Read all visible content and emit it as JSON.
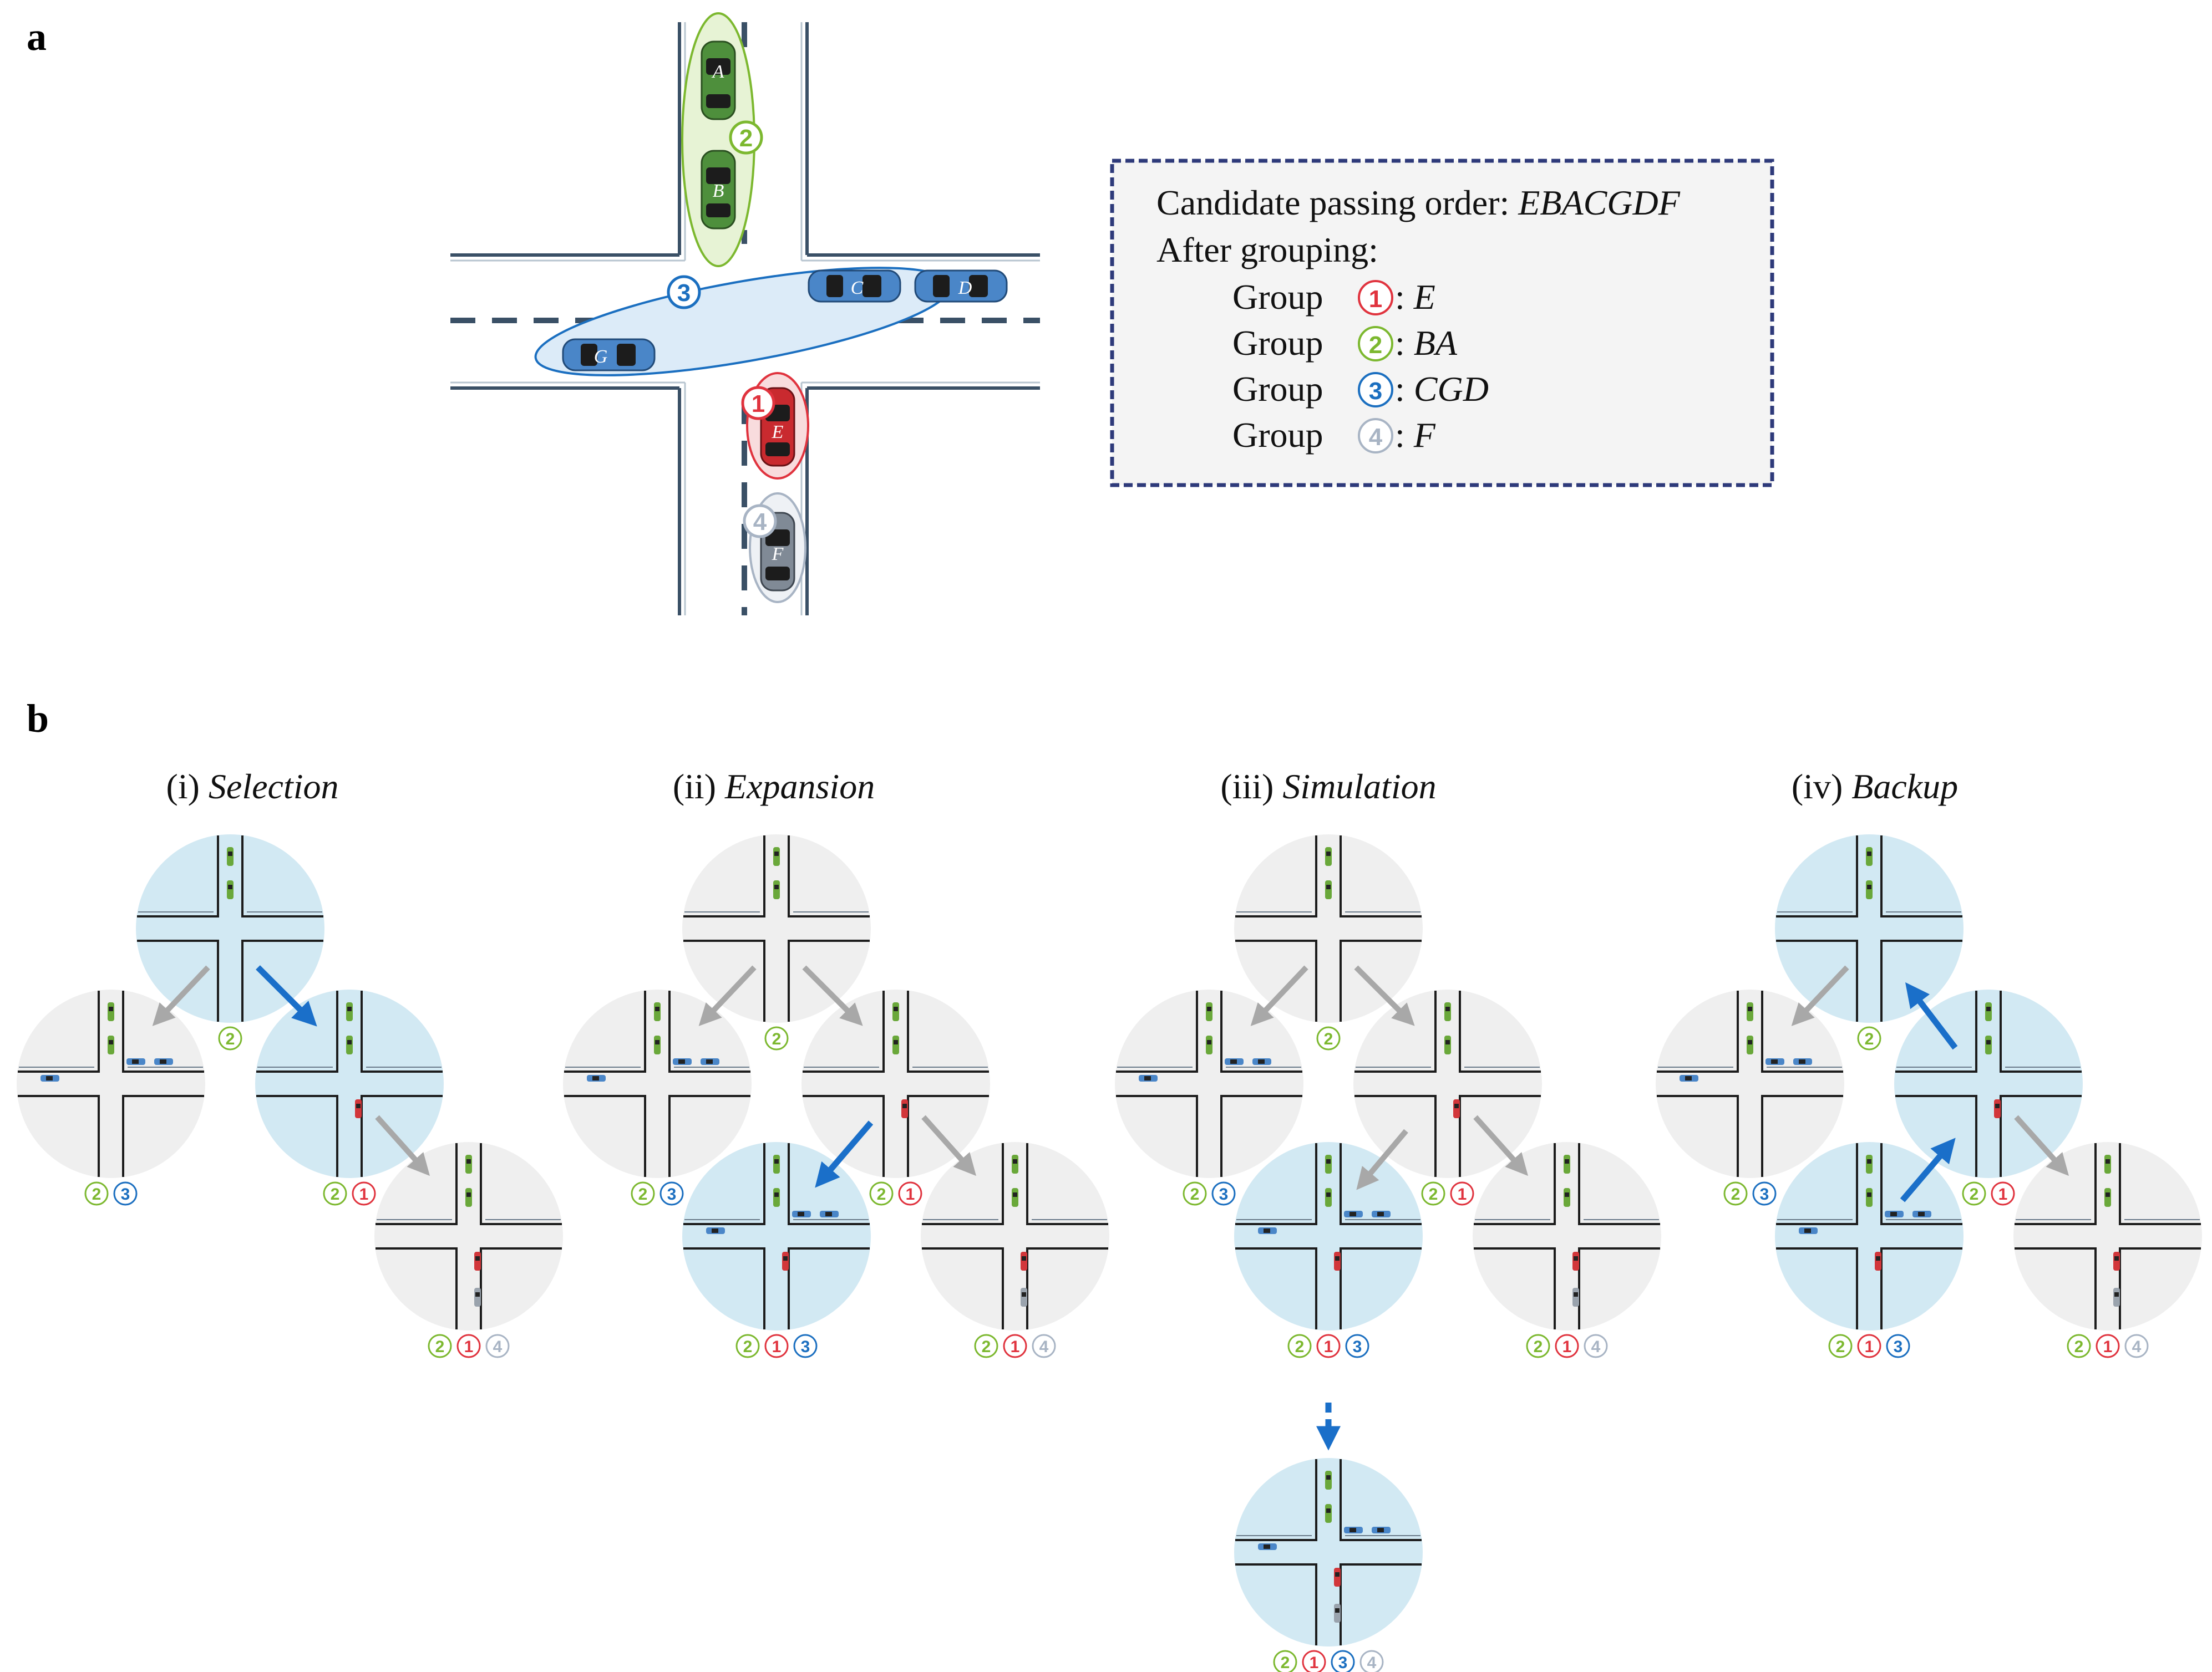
{
  "panel_a": {
    "letter": "a",
    "cars": {
      "A": "A",
      "B": "B",
      "C": "C",
      "D": "D",
      "E": "E",
      "F": "F",
      "G": "G"
    },
    "legend": {
      "candidate_prefix": "Candidate passing order: ",
      "candidate_order": "EBACGDF",
      "after_grouping": "After grouping:",
      "groups": [
        {
          "label": "Group ",
          "badge": "1",
          "members": "E"
        },
        {
          "label": "Group ",
          "badge": "2",
          "members": "BA"
        },
        {
          "label": "Group ",
          "badge": "3",
          "members": "CGD"
        },
        {
          "label": "Group ",
          "badge": "4",
          "members": "F"
        }
      ]
    }
  },
  "panel_b": {
    "letter": "b",
    "steps": [
      {
        "num": "(i)",
        "name": " Selection"
      },
      {
        "num": "(ii)",
        "name": " Expansion"
      },
      {
        "num": "(iii)",
        "name": " Simulation"
      },
      {
        "num": "(iv)",
        "name": " Backup"
      }
    ]
  },
  "colors": {
    "group1": "#e0333e",
    "group2": "#7cb82f",
    "group3": "#1b6fc0",
    "group4": "#a8b4c4",
    "node_active": "#d2e9f3",
    "node_inactive": "#efefef",
    "arrow_active": "#1a6fc9",
    "arrow_inactive": "#a8a8a8",
    "road": "#3a5066",
    "legend_border": "#2e3a7a"
  }
}
